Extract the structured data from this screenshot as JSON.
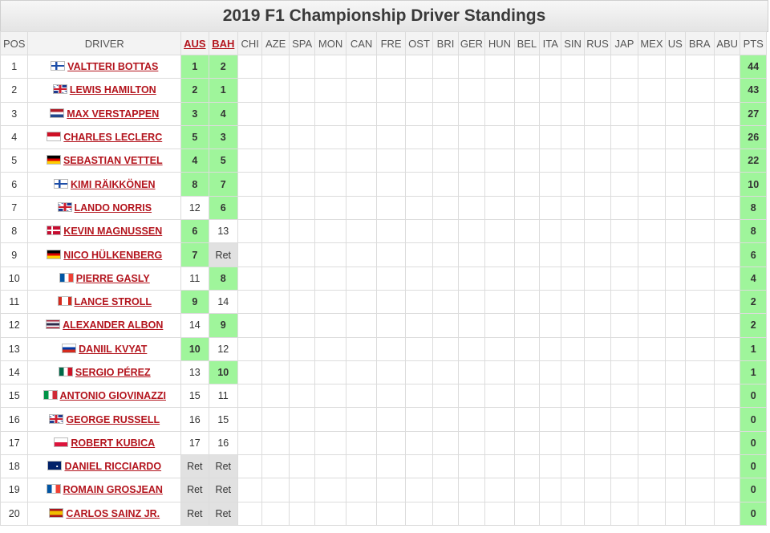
{
  "title": "2019 F1 Championship Driver Standings",
  "columns": {
    "pos": "POS",
    "driver": "DRIVER",
    "races": [
      "AUS",
      "BAH",
      "CHI",
      "AZE",
      "SPA",
      "MON",
      "CAN",
      "FRE",
      "OST",
      "BRI",
      "GER",
      "HUN",
      "BEL",
      "ITA",
      "SIN",
      "RUS",
      "JAP",
      "MEX",
      "US",
      "BRA",
      "ABU"
    ],
    "pts": "PTS"
  },
  "colors": {
    "points_bg": "#9ff59b",
    "retired_bg": "#e1e1e1",
    "link": "#b3141d"
  },
  "rows": [
    {
      "pos": "1",
      "flag": "finland-flag-icon",
      "driver": "VALTTERI BOTTAS",
      "results": [
        "1",
        "2"
      ],
      "points_flags": [
        true,
        true
      ],
      "pts": "44"
    },
    {
      "pos": "2",
      "flag": "uk-flag-icon",
      "driver": "LEWIS HAMILTON",
      "results": [
        "2",
        "1"
      ],
      "points_flags": [
        true,
        true
      ],
      "pts": "43"
    },
    {
      "pos": "3",
      "flag": "netherlands-flag-icon",
      "driver": "MAX VERSTAPPEN",
      "results": [
        "3",
        "4"
      ],
      "points_flags": [
        true,
        true
      ],
      "pts": "27"
    },
    {
      "pos": "4",
      "flag": "monaco-flag-icon",
      "driver": "CHARLES LECLERC",
      "results": [
        "5",
        "3"
      ],
      "points_flags": [
        true,
        true
      ],
      "pts": "26"
    },
    {
      "pos": "5",
      "flag": "germany-flag-icon",
      "driver": "SEBASTIAN VETTEL",
      "results": [
        "4",
        "5"
      ],
      "points_flags": [
        true,
        true
      ],
      "pts": "22"
    },
    {
      "pos": "6",
      "flag": "finland-flag-icon",
      "driver": "KIMI RÄIKKÖNEN",
      "results": [
        "8",
        "7"
      ],
      "points_flags": [
        true,
        true
      ],
      "pts": "10"
    },
    {
      "pos": "7",
      "flag": "uk-flag-icon",
      "driver": "LANDO NORRIS",
      "results": [
        "12",
        "6"
      ],
      "points_flags": [
        false,
        true
      ],
      "pts": "8"
    },
    {
      "pos": "8",
      "flag": "denmark-flag-icon",
      "driver": "KEVIN MAGNUSSEN",
      "results": [
        "6",
        "13"
      ],
      "points_flags": [
        true,
        false
      ],
      "pts": "8"
    },
    {
      "pos": "9",
      "flag": "germany-flag-icon",
      "driver": "NICO HÜLKENBERG",
      "results": [
        "7",
        "Ret"
      ],
      "points_flags": [
        true,
        false
      ],
      "pts": "6"
    },
    {
      "pos": "10",
      "flag": "france-flag-icon",
      "driver": "PIERRE GASLY",
      "results": [
        "11",
        "8"
      ],
      "points_flags": [
        false,
        true
      ],
      "pts": "4"
    },
    {
      "pos": "11",
      "flag": "canada-flag-icon",
      "driver": "LANCE STROLL",
      "results": [
        "9",
        "14"
      ],
      "points_flags": [
        true,
        false
      ],
      "pts": "2"
    },
    {
      "pos": "12",
      "flag": "thailand-flag-icon",
      "driver": "ALEXANDER ALBON",
      "results": [
        "14",
        "9"
      ],
      "points_flags": [
        false,
        true
      ],
      "pts": "2"
    },
    {
      "pos": "13",
      "flag": "russia-flag-icon",
      "driver": "DANIIL KVYAT",
      "results": [
        "10",
        "12"
      ],
      "points_flags": [
        true,
        false
      ],
      "pts": "1"
    },
    {
      "pos": "14",
      "flag": "mexico-flag-icon",
      "driver": "SERGIO PÉREZ",
      "results": [
        "13",
        "10"
      ],
      "points_flags": [
        false,
        true
      ],
      "pts": "1"
    },
    {
      "pos": "15",
      "flag": "italy-flag-icon",
      "driver": "ANTONIO GIOVINAZZI",
      "results": [
        "15",
        "11"
      ],
      "points_flags": [
        false,
        false
      ],
      "pts": "0"
    },
    {
      "pos": "16",
      "flag": "uk-flag-icon",
      "driver": "GEORGE RUSSELL",
      "results": [
        "16",
        "15"
      ],
      "points_flags": [
        false,
        false
      ],
      "pts": "0"
    },
    {
      "pos": "17",
      "flag": "poland-flag-icon",
      "driver": "ROBERT KUBICA",
      "results": [
        "17",
        "16"
      ],
      "points_flags": [
        false,
        false
      ],
      "pts": "0"
    },
    {
      "pos": "18",
      "flag": "australia-flag-icon",
      "driver": "DANIEL RICCIARDO",
      "results": [
        "Ret",
        "Ret"
      ],
      "points_flags": [
        false,
        false
      ],
      "pts": "0"
    },
    {
      "pos": "19",
      "flag": "france-flag-icon",
      "driver": "ROMAIN GROSJEAN",
      "results": [
        "Ret",
        "Ret"
      ],
      "points_flags": [
        false,
        false
      ],
      "pts": "0"
    },
    {
      "pos": "20",
      "flag": "spain-flag-icon",
      "driver": "CARLOS SAINZ JR.",
      "results": [
        "Ret",
        "Ret"
      ],
      "points_flags": [
        false,
        false
      ],
      "pts": "0"
    }
  ]
}
